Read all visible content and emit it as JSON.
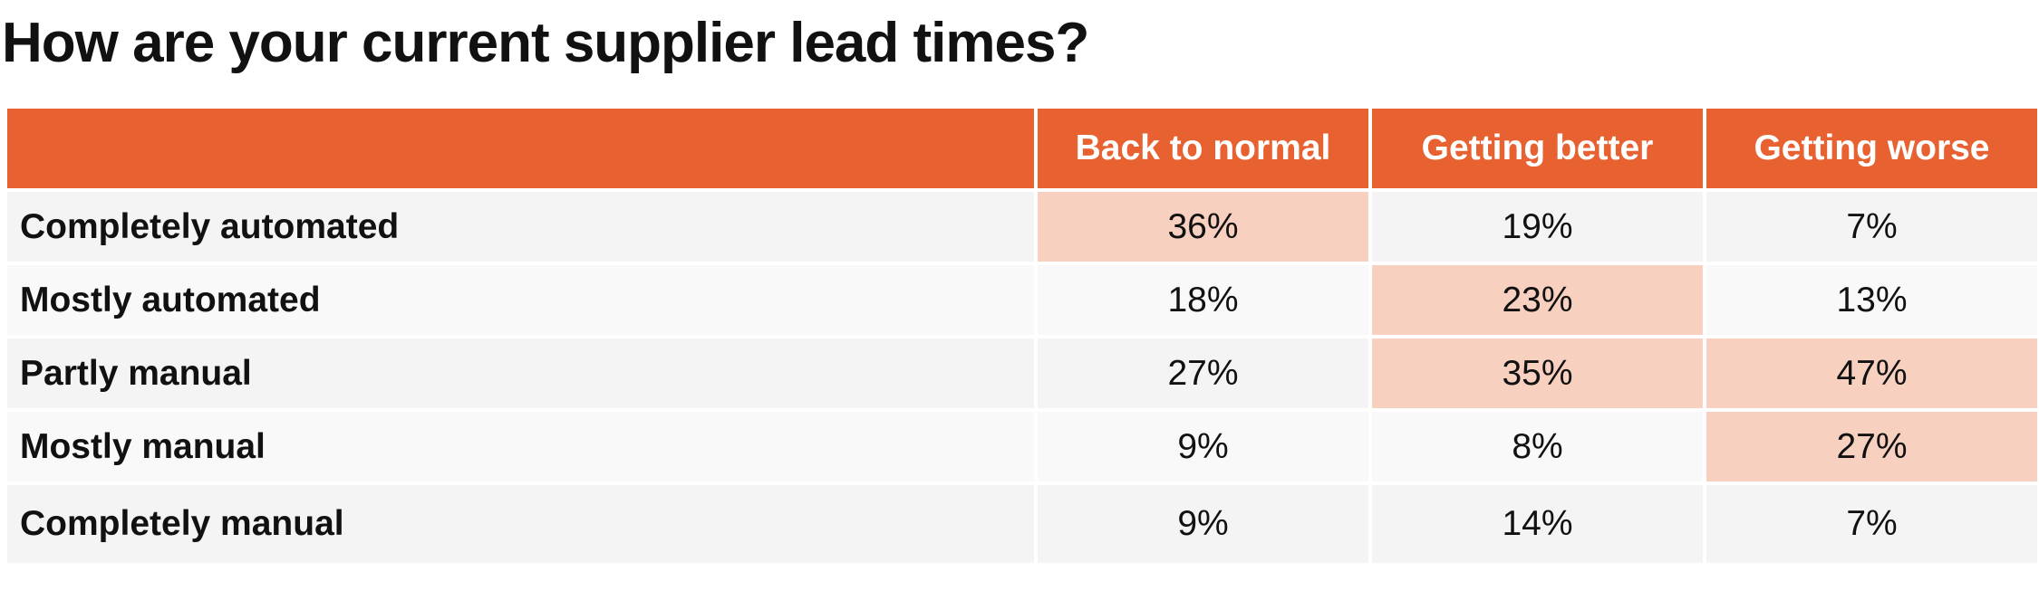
{
  "title": "How are your current supplier lead times?",
  "colors": {
    "header_bg": "#e86231",
    "highlight_bg": "#f8d0c0",
    "row_bg_odd": "#f4f4f4",
    "row_bg_even": "#f9f9f9"
  },
  "chart_data": {
    "type": "table",
    "title": "How are your current supplier lead times?",
    "columns": [
      "Back to normal",
      "Getting better",
      "Getting worse"
    ],
    "rows": [
      {
        "label": "Completely automated",
        "values": [
          "36%",
          "19%",
          "7%"
        ],
        "highlight": [
          true,
          false,
          false
        ]
      },
      {
        "label": "Mostly automated",
        "values": [
          "18%",
          "23%",
          "13%"
        ],
        "highlight": [
          false,
          true,
          false
        ]
      },
      {
        "label": "Partly manual",
        "values": [
          "27%",
          "35%",
          "47%"
        ],
        "highlight": [
          false,
          true,
          true
        ]
      },
      {
        "label": "Mostly manual",
        "values": [
          "9%",
          "8%",
          "27%"
        ],
        "highlight": [
          false,
          false,
          true
        ]
      },
      {
        "label": "Completely manual",
        "values": [
          "9%",
          "14%",
          "7%"
        ],
        "highlight": [
          false,
          false,
          false
        ]
      }
    ]
  }
}
